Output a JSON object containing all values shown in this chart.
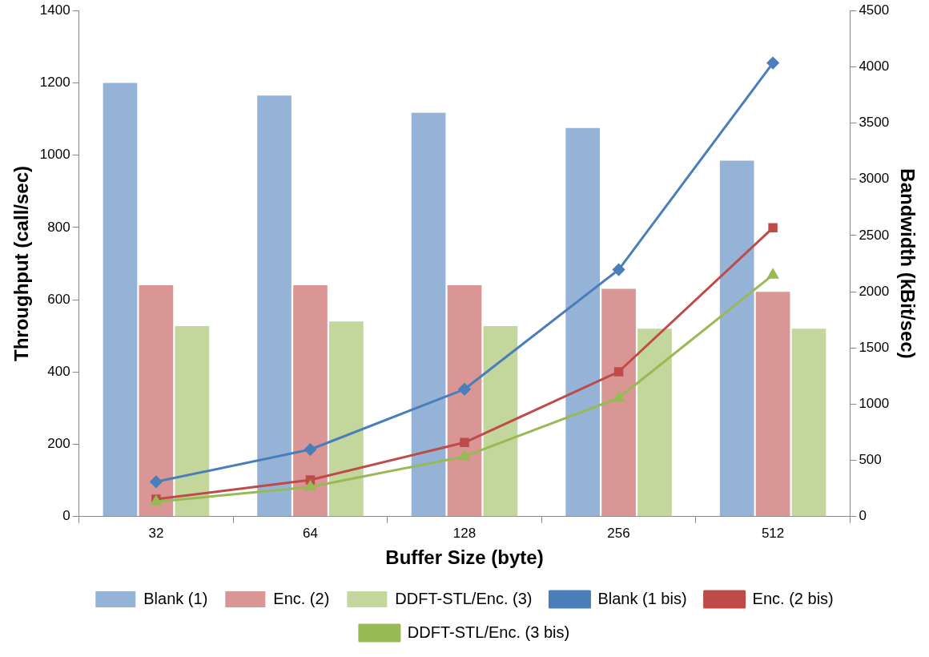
{
  "chart_data": {
    "type": "bar",
    "xlabel": "Buffer Size (byte)",
    "ylabel": "Throughput (call/sec)",
    "y2label": "Bandwidth (kBit/sec)",
    "categories": [
      "32",
      "64",
      "128",
      "256",
      "512"
    ],
    "series": [
      {
        "name": "Blank (1)",
        "color": "#95b3d7",
        "values": [
          1200,
          1165,
          1117,
          1075,
          985
        ]
      },
      {
        "name": "Enc. (2)",
        "color": "#d99694",
        "values": [
          640,
          640,
          640,
          630,
          622
        ]
      },
      {
        "name": "DDFT-STL/Enc. (3)",
        "color": "#c3d69b",
        "values": [
          527,
          540,
          527,
          520,
          520
        ]
      },
      {
        "name": "Blank (1 bis)",
        "type": "line",
        "axis": "y2",
        "marker": "diamond",
        "color": "#4a7ebb",
        "values": [
          310,
          597,
          1133,
          2196,
          4034
        ]
      },
      {
        "name": "Enc. (2 bis)",
        "type": "line",
        "axis": "y2",
        "marker": "square",
        "color": "#be4b48",
        "values": [
          155,
          326,
          659,
          1288,
          2568
        ]
      },
      {
        "name": "DDFT-STL/Enc. (3 bis)",
        "type": "line",
        "axis": "y2",
        "marker": "triangle",
        "color": "#98b954",
        "values": [
          132,
          264,
          535,
          1055,
          2149
        ]
      }
    ],
    "ylim": [
      0,
      1400
    ],
    "yticks": [
      0,
      200,
      400,
      600,
      800,
      1000,
      1200,
      1400
    ],
    "y2lim": [
      0,
      4500
    ],
    "y2ticks": [
      0,
      500,
      1000,
      1500,
      2000,
      2500,
      3000,
      3500,
      4000,
      4500
    ],
    "grid": false,
    "legend": "bottom"
  }
}
